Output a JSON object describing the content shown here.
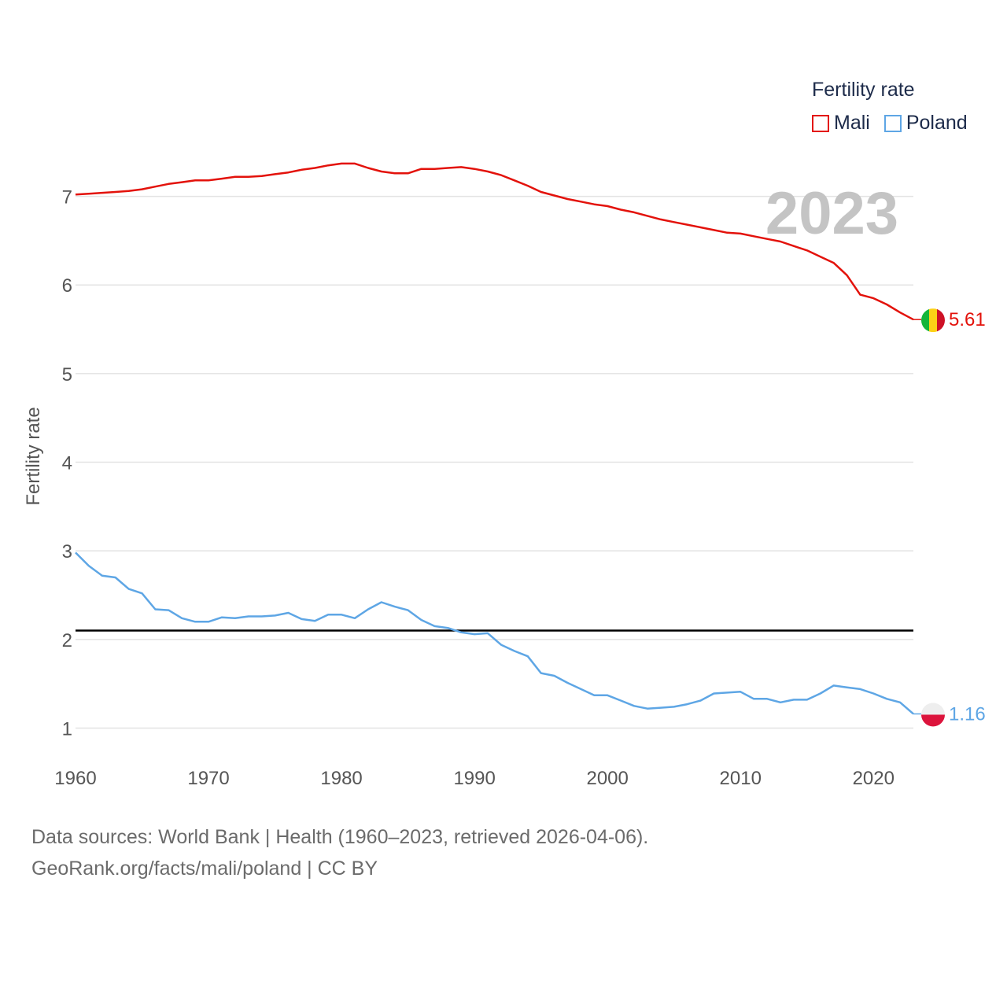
{
  "legend": {
    "title": "Fertility rate",
    "items": [
      {
        "name": "Mali",
        "color": "#e3120b"
      },
      {
        "name": "Poland",
        "color": "#5ea6e5"
      }
    ]
  },
  "current_year": "2023",
  "footer": {
    "line1": "Data sources: World Bank | Health (1960–2023, retrieved 2026-04-06).",
    "line2": "GeoRank.org/facts/mali/poland | CC BY"
  },
  "chart_data": {
    "type": "line",
    "title": "Fertility rate",
    "xlabel": "",
    "ylabel": "Fertility rate",
    "xlim": [
      1960,
      2023
    ],
    "ylim": [
      0.8,
      7.6
    ],
    "x_ticks": [
      1960,
      1970,
      1980,
      1990,
      2000,
      2010,
      2020
    ],
    "y_ticks": [
      1,
      2,
      3,
      4,
      5,
      6,
      7
    ],
    "reference_line": 2.1,
    "x": [
      1960,
      1961,
      1962,
      1963,
      1964,
      1965,
      1966,
      1967,
      1968,
      1969,
      1970,
      1971,
      1972,
      1973,
      1974,
      1975,
      1976,
      1977,
      1978,
      1979,
      1980,
      1981,
      1982,
      1983,
      1984,
      1985,
      1986,
      1987,
      1988,
      1989,
      1990,
      1991,
      1992,
      1993,
      1994,
      1995,
      1996,
      1997,
      1998,
      1999,
      2000,
      2001,
      2002,
      2003,
      2004,
      2005,
      2006,
      2007,
      2008,
      2009,
      2010,
      2011,
      2012,
      2013,
      2014,
      2015,
      2016,
      2017,
      2018,
      2019,
      2020,
      2021,
      2022,
      2023
    ],
    "series": [
      {
        "name": "Mali",
        "color": "#e3120b",
        "end_label": "5.61",
        "values": [
          7.02,
          7.03,
          7.04,
          7.05,
          7.06,
          7.08,
          7.11,
          7.14,
          7.16,
          7.18,
          7.18,
          7.2,
          7.22,
          7.22,
          7.23,
          7.25,
          7.27,
          7.3,
          7.32,
          7.35,
          7.37,
          7.37,
          7.32,
          7.28,
          7.26,
          7.26,
          7.31,
          7.31,
          7.32,
          7.33,
          7.31,
          7.28,
          7.24,
          7.18,
          7.12,
          7.05,
          7.01,
          6.97,
          6.94,
          6.91,
          6.89,
          6.85,
          6.82,
          6.78,
          6.74,
          6.71,
          6.68,
          6.65,
          6.62,
          6.59,
          6.58,
          6.55,
          6.52,
          6.49,
          6.44,
          6.39,
          6.32,
          6.25,
          6.11,
          5.89,
          5.85,
          5.78,
          5.69,
          5.61
        ]
      },
      {
        "name": "Poland",
        "color": "#5ea6e5",
        "end_label": "1.16",
        "values": [
          2.98,
          2.83,
          2.72,
          2.7,
          2.57,
          2.52,
          2.34,
          2.33,
          2.24,
          2.2,
          2.2,
          2.25,
          2.24,
          2.26,
          2.26,
          2.27,
          2.3,
          2.23,
          2.21,
          2.28,
          2.28,
          2.24,
          2.34,
          2.42,
          2.37,
          2.33,
          2.22,
          2.15,
          2.13,
          2.08,
          2.06,
          2.07,
          1.94,
          1.87,
          1.81,
          1.62,
          1.59,
          1.51,
          1.44,
          1.37,
          1.37,
          1.31,
          1.25,
          1.22,
          1.23,
          1.24,
          1.27,
          1.31,
          1.39,
          1.4,
          1.41,
          1.33,
          1.33,
          1.29,
          1.32,
          1.32,
          1.39,
          1.48,
          1.46,
          1.44,
          1.39,
          1.33,
          1.29,
          1.16
        ]
      }
    ]
  }
}
